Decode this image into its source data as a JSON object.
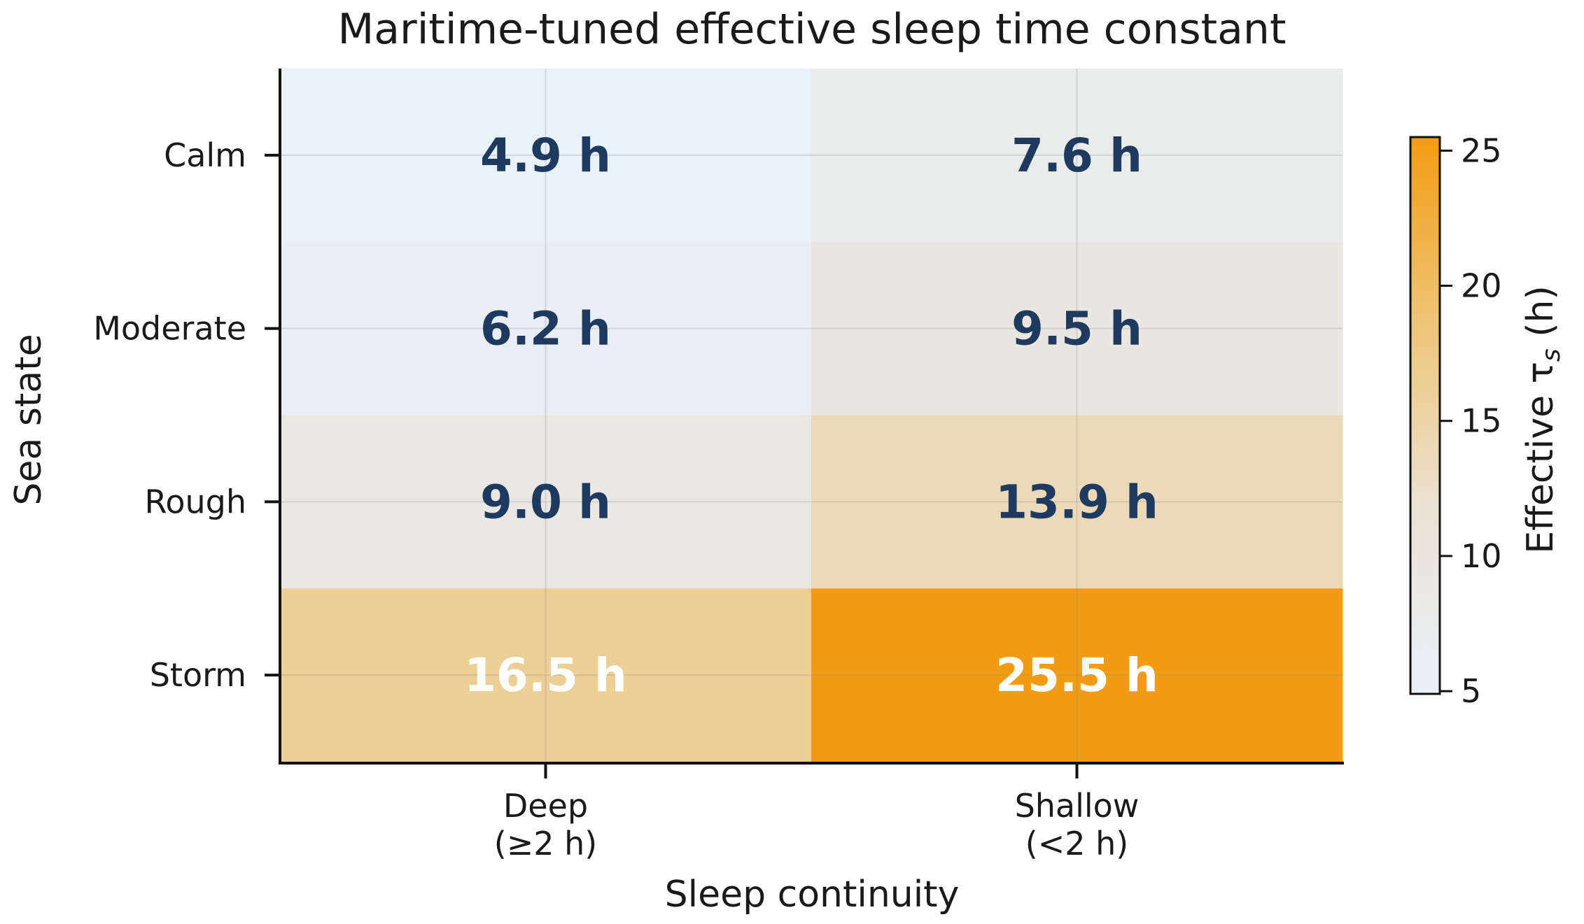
{
  "chart_data": {
    "type": "heatmap",
    "title": "Maritime-tuned effective sleep time constant",
    "xlabel": "Sleep continuity",
    "ylabel": "Sea state",
    "x_categories": [
      {
        "line1": "Deep",
        "line2": "(≥2 h)"
      },
      {
        "line1": "Shallow",
        "line2": "(<2 h)"
      }
    ],
    "y_categories": [
      "Calm",
      "Moderate",
      "Rough",
      "Storm"
    ],
    "values": [
      [
        4.9,
        7.6
      ],
      [
        6.2,
        9.5
      ],
      [
        9.0,
        13.9
      ],
      [
        16.5,
        25.5
      ]
    ],
    "cell_labels": [
      [
        "4.9 h",
        "7.6 h"
      ],
      [
        "6.2 h",
        "9.5 h"
      ],
      [
        "9.0 h",
        "13.9 h"
      ],
      [
        "16.5 h",
        "25.5 h"
      ]
    ],
    "colorbar": {
      "label_prefix": "Effective τ",
      "label_subscript": "s",
      "label_suffix": " (h)",
      "range": [
        4.9,
        25.5
      ],
      "ticks": [
        "5",
        "10",
        "15",
        "20",
        "25"
      ],
      "tick_values": [
        5,
        10,
        15,
        20,
        25
      ]
    },
    "colormap": [
      "#e9f1fa",
      "#ebe2d4",
      "#edc679",
      "#f39c12"
    ],
    "text_colors": {
      "dark": "#1f3a5f",
      "light": "#ffffff"
    },
    "grid": true
  }
}
